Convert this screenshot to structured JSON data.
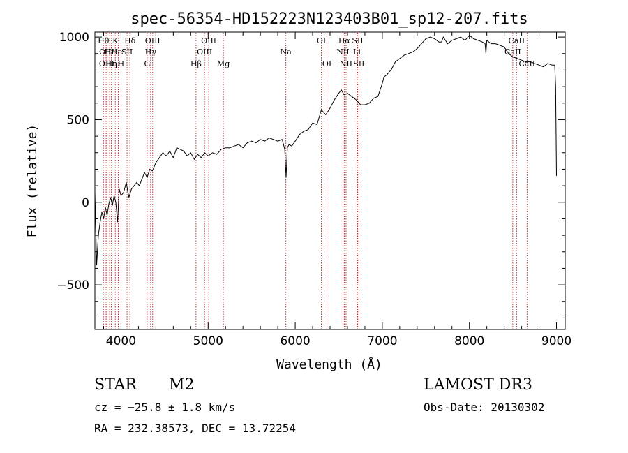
{
  "chart_data": {
    "type": "line",
    "title": "spec-56354-HD152223N123403B01_sp12-207.fits",
    "xlabel": "Wavelength (Å)",
    "ylabel": "Flux (relative)",
    "xlim": [
      3700,
      9100
    ],
    "ylim": [
      -770,
      1030
    ],
    "xticks": [
      4000,
      5000,
      6000,
      7000,
      8000,
      9000
    ],
    "yticks": [
      -500,
      0,
      500,
      1000
    ],
    "grid": false,
    "legend": "none",
    "series": [
      {
        "x": [
          3700,
          3720,
          3740,
          3760,
          3780,
          3800,
          3820,
          3840,
          3860,
          3880,
          3900,
          3920,
          3940,
          3960,
          3980,
          4000,
          4030,
          4060,
          4090,
          4120,
          4150,
          4180,
          4210,
          4240,
          4270,
          4300,
          4330,
          4360,
          4400,
          4440,
          4480,
          4520,
          4560,
          4600,
          4640,
          4680,
          4720,
          4760,
          4800,
          4840,
          4880,
          4920,
          4960,
          5000,
          5050,
          5100,
          5150,
          5200,
          5250,
          5300,
          5350,
          5400,
          5450,
          5500,
          5550,
          5600,
          5650,
          5700,
          5750,
          5800,
          5850,
          5880,
          5895,
          5910,
          5930,
          5960,
          6000,
          6050,
          6100,
          6150,
          6200,
          6250,
          6300,
          6350,
          6400,
          6450,
          6500,
          6530,
          6560,
          6600,
          6650,
          6700,
          6750,
          6800,
          6850,
          6900,
          6950,
          7000,
          7020,
          7050,
          7080,
          7100,
          7150,
          7200,
          7250,
          7300,
          7350,
          7400,
          7450,
          7500,
          7550,
          7600,
          7650,
          7680,
          7700,
          7750,
          7800,
          7850,
          7900,
          7950,
          8000,
          8050,
          8100,
          8150,
          8180,
          8190,
          8200,
          8250,
          8300,
          8350,
          8400,
          8450,
          8500,
          8550,
          8600,
          8650,
          8700,
          8750,
          8800,
          8850,
          8900,
          8950,
          8980,
          8990,
          9000
        ],
        "values": [
          60,
          -380,
          -200,
          -120,
          -60,
          -100,
          -30,
          -80,
          -10,
          30,
          -20,
          40,
          0,
          -120,
          80,
          40,
          60,
          120,
          30,
          80,
          100,
          120,
          100,
          140,
          180,
          150,
          200,
          190,
          240,
          270,
          300,
          280,
          310,
          270,
          330,
          320,
          310,
          280,
          300,
          260,
          290,
          270,
          300,
          280,
          300,
          290,
          320,
          330,
          330,
          340,
          350,
          330,
          360,
          370,
          360,
          380,
          370,
          390,
          380,
          370,
          380,
          320,
          150,
          330,
          350,
          340,
          370,
          410,
          430,
          440,
          480,
          470,
          560,
          530,
          570,
          620,
          660,
          680,
          650,
          660,
          640,
          620,
          590,
          590,
          600,
          630,
          640,
          720,
          760,
          770,
          790,
          800,
          850,
          870,
          890,
          900,
          910,
          930,
          960,
          990,
          1000,
          990,
          970,
          970,
          1000,
          960,
          980,
          990,
          1000,
          980,
          1010,
          990,
          980,
          970,
          960,
          900,
          980,
          960,
          960,
          950,
          940,
          900,
          880,
          870,
          860,
          850,
          850,
          840,
          830,
          820,
          840,
          830,
          830,
          700,
          160
        ]
      }
    ],
    "line_labels": [
      {
        "x": 3798,
        "label": "Hθ",
        "row": 0
      },
      {
        "x": 3820,
        "label": "OII",
        "row": 1
      },
      {
        "x": 3835,
        "label": "OIII",
        "row": 2
      },
      {
        "x": 3869,
        "label": "Hε",
        "row": 1
      },
      {
        "x": 3889,
        "label": "Hη",
        "row": 2
      },
      {
        "x": 3934,
        "label": "K",
        "row": 0
      },
      {
        "x": 3968,
        "label": "HeI",
        "row": 1
      },
      {
        "x": 4000,
        "label": "H",
        "row": 2
      },
      {
        "x": 4069,
        "label": "SII",
        "row": 1
      },
      {
        "x": 4102,
        "label": "Hδ",
        "row": 0
      },
      {
        "x": 4300,
        "label": "G",
        "row": 2
      },
      {
        "x": 4340,
        "label": "Hγ",
        "row": 1
      },
      {
        "x": 4363,
        "label": "OIII",
        "row": 0
      },
      {
        "x": 4861,
        "label": "Hβ",
        "row": 2
      },
      {
        "x": 4959,
        "label": "OIII",
        "row": 1
      },
      {
        "x": 5007,
        "label": "OIII",
        "row": 0
      },
      {
        "x": 5175,
        "label": "Mg",
        "row": 2
      },
      {
        "x": 5893,
        "label": "Na",
        "row": 1
      },
      {
        "x": 6300,
        "label": "OI",
        "row": 0
      },
      {
        "x": 6364,
        "label": "OI",
        "row": 2
      },
      {
        "x": 6548,
        "label": "NII",
        "row": 1
      },
      {
        "x": 6563,
        "label": "Hα",
        "row": 0
      },
      {
        "x": 6584,
        "label": "NII",
        "row": 2
      },
      {
        "x": 6708,
        "label": "Li",
        "row": 1
      },
      {
        "x": 6716,
        "label": "SII",
        "row": 0
      },
      {
        "x": 6731,
        "label": "SII",
        "row": 2
      },
      {
        "x": 8498,
        "label": "CaII",
        "row": 1
      },
      {
        "x": 8542,
        "label": "CaII",
        "row": 0
      },
      {
        "x": 8662,
        "label": "CaII",
        "row": 2
      }
    ]
  },
  "info": {
    "object_class": "STAR",
    "subclass": "M2",
    "survey": "LAMOST DR3",
    "cz": "cz = −25.8 ± 1.8 km/s",
    "obs_date": "Obs-Date: 20130302",
    "coords": "RA = 232.38573, DEC =  13.72254"
  },
  "colors": {
    "line_marker": "#b22222",
    "spectrum": "#000000",
    "axis": "#000000"
  }
}
